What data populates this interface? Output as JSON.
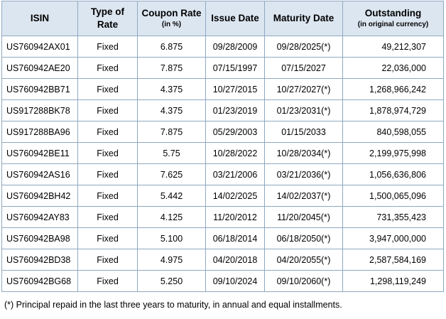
{
  "headers": {
    "isin": "ISIN",
    "type_of_rate": "Type of Rate",
    "coupon_rate": "Coupon Rate",
    "coupon_rate_sub": "(in %)",
    "issue_date": "Issue Date",
    "maturity_date": "Maturity Date",
    "outstanding": "Outstanding",
    "outstanding_sub": "(in original currency)"
  },
  "rows": [
    {
      "isin": "US760942AX01",
      "rate_type": "Fixed",
      "coupon": "6.875",
      "issue": "09/28/2009",
      "maturity": "09/28/2025(*)",
      "outstanding": "49,212,307"
    },
    {
      "isin": "US760942AE20",
      "rate_type": "Fixed",
      "coupon": "7.875",
      "issue": "07/15/1997",
      "maturity": "07/15/2027",
      "outstanding": "22,036,000"
    },
    {
      "isin": "US760942BB71",
      "rate_type": "Fixed",
      "coupon": "4.375",
      "issue": "10/27/2015",
      "maturity": "10/27/2027(*)",
      "outstanding": "1,268,966,242"
    },
    {
      "isin": "US917288BK78",
      "rate_type": "Fixed",
      "coupon": "4.375",
      "issue": "01/23/2019",
      "maturity": "01/23/2031(*)",
      "outstanding": "1,878,974,729"
    },
    {
      "isin": "US917288BA96",
      "rate_type": "Fixed",
      "coupon": "7.875",
      "issue": "05/29/2003",
      "maturity": "01/15/2033",
      "outstanding": "840,598,055"
    },
    {
      "isin": "US760942BE11",
      "rate_type": "Fixed",
      "coupon": "5.75",
      "issue": "10/28/2022",
      "maturity": "10/28/2034(*)",
      "outstanding": "2,199,975,998"
    },
    {
      "isin": "US760942AS16",
      "rate_type": "Fixed",
      "coupon": "7.625",
      "issue": "03/21/2006",
      "maturity": "03/21/2036(*)",
      "outstanding": "1,056,636,806"
    },
    {
      "isin": "US760942BH42",
      "rate_type": "Fixed",
      "coupon": "5.442",
      "issue": "14/02/2025",
      "maturity": "14/02/2037(*)",
      "outstanding": "1,500,065,096"
    },
    {
      "isin": "US760942AY83",
      "rate_type": "Fixed",
      "coupon": "4.125",
      "issue": "11/20/2012",
      "maturity": "11/20/2045(*)",
      "outstanding": "731,355,423"
    },
    {
      "isin": "US760942BA98",
      "rate_type": "Fixed",
      "coupon": "5.100",
      "issue": "06/18/2014",
      "maturity": "06/18/2050(*)",
      "outstanding": "3,947,000,000"
    },
    {
      "isin": "US760942BD38",
      "rate_type": "Fixed",
      "coupon": "4.975",
      "issue": "04/20/2018",
      "maturity": "04/20/2055(*)",
      "outstanding": "2,587,584,169"
    },
    {
      "isin": "US760942BG68",
      "rate_type": "Fixed",
      "coupon": "5.250",
      "issue": "09/10/2024",
      "maturity": "09/10/2060(*)",
      "outstanding": "1,298,119,249"
    }
  ],
  "footnote": "(*) Principal repaid in the last three years to maturity, in annual and equal installments.",
  "colors": {
    "header_background": "#dce6f1",
    "border": "#8ea9c1"
  }
}
